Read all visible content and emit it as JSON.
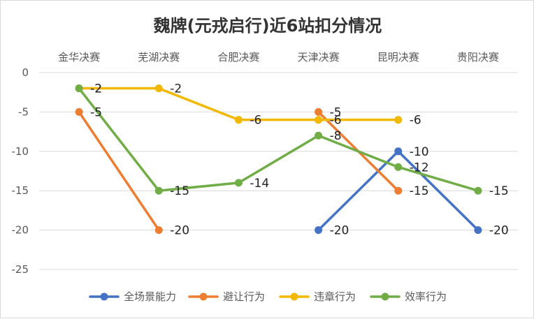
{
  "chart_data": {
    "type": "line",
    "title": "魏牌(元戎启行)近6站扣分情况",
    "categories": [
      "金华决赛",
      "芜湖决赛",
      "合肥决赛",
      "天津决赛",
      "昆明决赛",
      "贵阳决赛"
    ],
    "ylim": [
      -25,
      0
    ],
    "yticks": [
      0,
      -5,
      -10,
      -15,
      -20,
      -25
    ],
    "grid": true,
    "legend_position": "bottom",
    "xaxis_position": "top",
    "series": [
      {
        "name": "全场景能力",
        "color": "#4472c4",
        "values": [
          null,
          null,
          null,
          -20,
          -10,
          -20
        ]
      },
      {
        "name": "避让行为",
        "color": "#ed7d31",
        "values": [
          -5,
          -20,
          null,
          -5,
          -15,
          null
        ]
      },
      {
        "name": "违章行为",
        "color": "#f2b800",
        "values": [
          -2,
          -2,
          -6,
          -6,
          -6,
          null
        ]
      },
      {
        "name": "效率行为",
        "color": "#70ad47",
        "values": [
          -2,
          -15,
          -14,
          -8,
          -12,
          -15
        ]
      }
    ]
  }
}
